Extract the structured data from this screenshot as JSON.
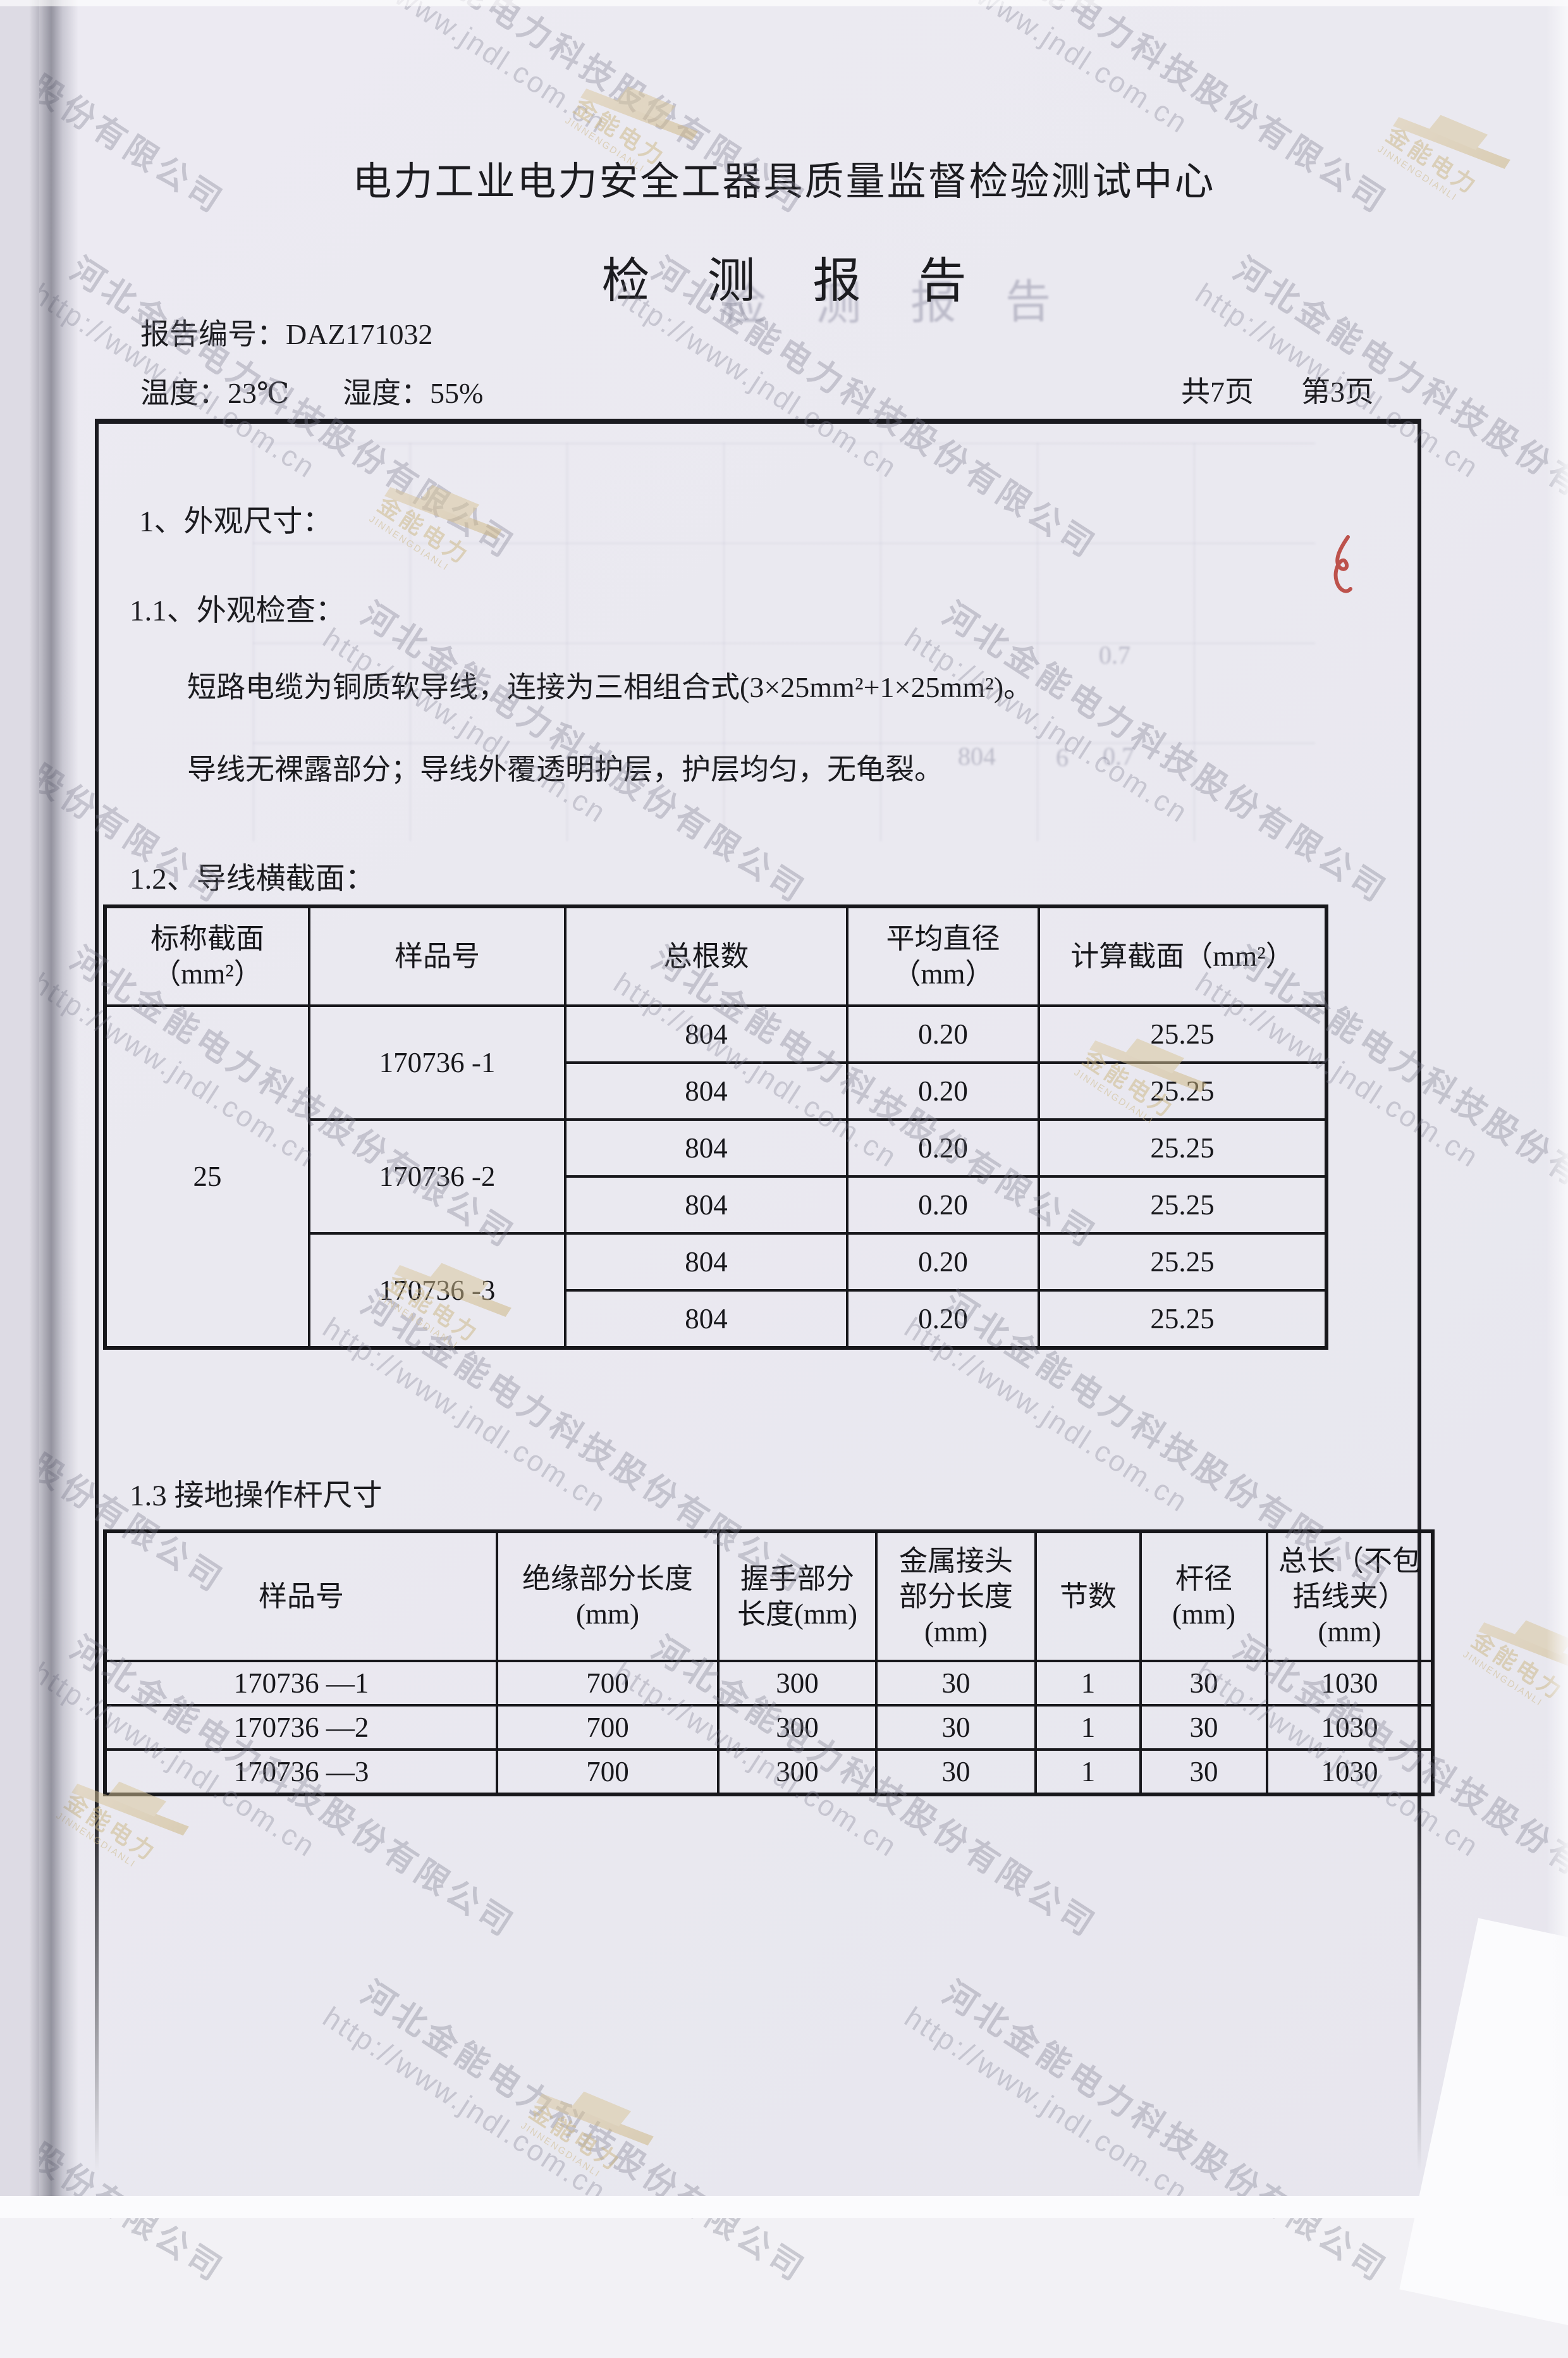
{
  "page": {
    "paper_color": "#ebeaf1",
    "ink_color": "#1c1c20"
  },
  "watermark": {
    "company": "河北金能电力科技股份有限公司",
    "url": "http://www.jndl.com.cn",
    "logo_cn": "金能电力",
    "logo_en": "JINNENGDIANLI",
    "text_color": "#7c7c8e",
    "logo_color": "#ccb783"
  },
  "header": {
    "org_title": "电力工业电力安全工器具质量监督检验测试中心",
    "report_title": "检 测 报 告",
    "report_no": "报告编号：DAZ171032",
    "temperature": "温度：23℃",
    "humidity": "湿度：55%",
    "pages_total": "共7页",
    "page_current": "第3页"
  },
  "body": {
    "s1": "1、外观尺寸：",
    "s1_1": "1.1、外观检查：",
    "p1": "短路电缆为铜质软导线，连接为三相组合式(3×25mm²+1×25mm²)。",
    "p2": "导线无裸露部分；导线外覆透明护层，护层均匀，无龟裂。",
    "s1_2": "1.2、导线横截面：",
    "s1_3": "1.3 接地操作杆尺寸"
  },
  "table1": {
    "headers": [
      "标称截面\n（mm²）",
      "样品号",
      "总根数",
      "平均直径（mm）",
      "计算截面（mm²）"
    ],
    "nominal_section": "25",
    "groups": [
      {
        "sample": "170736 -1",
        "rows": [
          {
            "strands": "804",
            "diameter": "0.20",
            "section": "25.25"
          },
          {
            "strands": "804",
            "diameter": "0.20",
            "section": "25.25"
          }
        ]
      },
      {
        "sample": "170736 -2",
        "rows": [
          {
            "strands": "804",
            "diameter": "0.20",
            "section": "25.25"
          },
          {
            "strands": "804",
            "diameter": "0.20",
            "section": "25.25"
          }
        ]
      },
      {
        "sample": "170736 -3",
        "rows": [
          {
            "strands": "804",
            "diameter": "0.20",
            "section": "25.25"
          },
          {
            "strands": "804",
            "diameter": "0.20",
            "section": "25.25"
          }
        ]
      }
    ]
  },
  "table2": {
    "headers": [
      "样品号",
      "绝缘部分长度\n(mm)",
      "握手部分\n长度(mm)",
      "金属接头\n部分长度\n(mm)",
      "节数",
      "杆径\n(mm)",
      "总长（不包\n括线夹）\n(mm)"
    ],
    "rows": [
      {
        "sample": "170736 —1",
        "insulation": "700",
        "grip": "300",
        "metal": "30",
        "joints": "1",
        "rod_dia": "30",
        "total": "1030"
      },
      {
        "sample": "170736 —2",
        "insulation": "700",
        "grip": "300",
        "metal": "30",
        "joints": "1",
        "rod_dia": "30",
        "total": "1030"
      },
      {
        "sample": "170736 —3",
        "insulation": "700",
        "grip": "300",
        "metal": "30",
        "joints": "1",
        "rod_dia": "30",
        "total": "1030"
      }
    ]
  },
  "ghost": {
    "title": "检 测 报 告",
    "values": [
      "0.7",
      "804",
      "6",
      "0.7"
    ]
  }
}
